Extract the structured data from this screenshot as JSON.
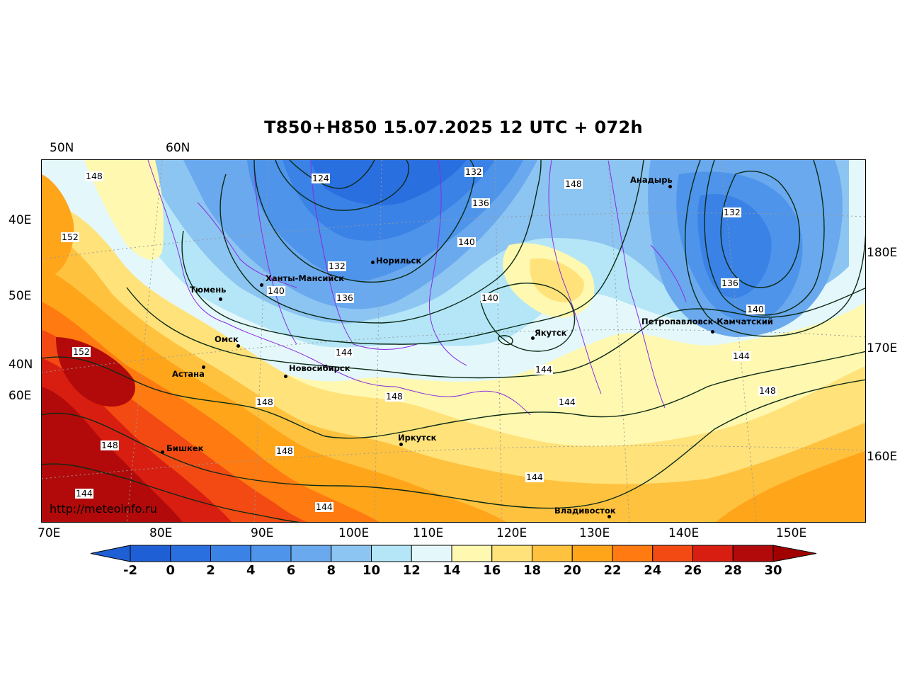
{
  "title": "T850+H850 15.07.2025 12 UTC + 072h",
  "watermark": "http://meteoinfo.ru",
  "top_labels": [
    "50N",
    "60N"
  ],
  "left_labels": [
    "40E",
    "50E",
    "40N",
    "60E"
  ],
  "right_labels": [
    "180E",
    "170E",
    "160E"
  ],
  "bottom_labels": [
    "70E",
    "80E",
    "90E",
    "100E",
    "110E",
    "120E",
    "130E",
    "140E",
    "150E"
  ],
  "colorbar": {
    "labels": [
      "-2",
      "0",
      "2",
      "4",
      "6",
      "8",
      "10",
      "12",
      "14",
      "16",
      "18",
      "20",
      "22",
      "24",
      "26",
      "28",
      "30"
    ],
    "colors": [
      "#1f5fd6",
      "#2a6fe0",
      "#3a82e6",
      "#4d94ea",
      "#6aa9ee",
      "#8cc4f2",
      "#b4e6f7",
      "#e4f8fb",
      "#fff8b0",
      "#ffe27a",
      "#ffc23f",
      "#ffa51a",
      "#ff7a10",
      "#f24a12",
      "#d81e10",
      "#b20a0a"
    ],
    "under_color": "#1f5fd6",
    "over_color": "#a00000"
  },
  "cities": [
    {
      "name": "Тюмень"
    },
    {
      "name": "Ханты-Мансийск"
    },
    {
      "name": "Норильск"
    },
    {
      "name": "Омск"
    },
    {
      "name": "Астана"
    },
    {
      "name": "Новосибирск"
    },
    {
      "name": "Бишкек"
    },
    {
      "name": "Иркутск"
    },
    {
      "name": "Якутск"
    },
    {
      "name": "Владивосток"
    },
    {
      "name": "Анадырь"
    },
    {
      "name": "Петропавловск-Камчатский"
    }
  ],
  "contour_labels": [
    "148",
    "124",
    "132",
    "136",
    "148",
    "152",
    "132",
    "140",
    "132",
    "140",
    "136",
    "140",
    "136",
    "140",
    "152",
    "144",
    "148",
    "148",
    "144",
    "144",
    "148",
    "148",
    "148",
    "144",
    "144",
    "144",
    "144"
  ]
}
